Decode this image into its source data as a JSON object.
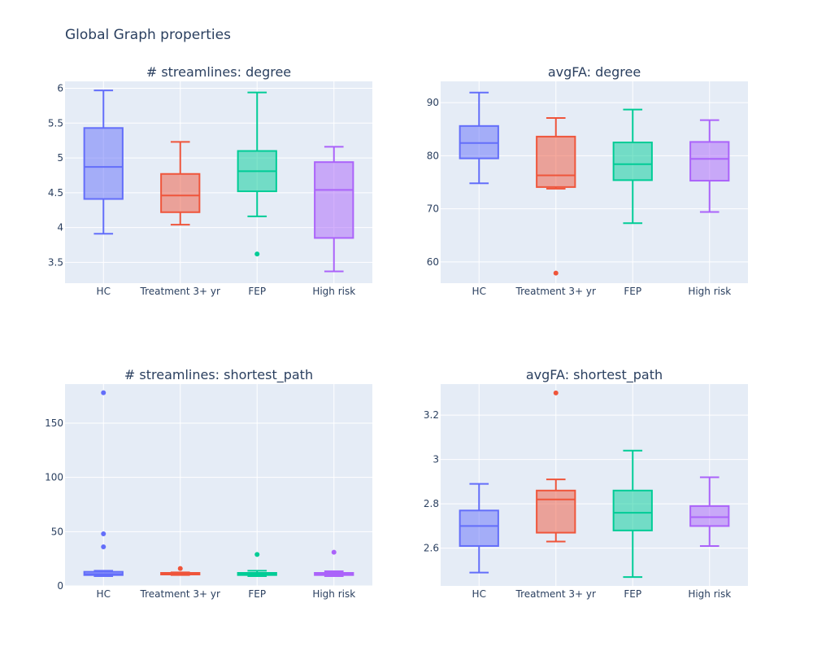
{
  "title": "Global Graph properties",
  "colors": {
    "HC": "#636efa",
    "Treatment 3+ yr": "#ef553b",
    "FEP": "#00cc96",
    "High risk": "#ab63fa",
    "plot_bg": "#e5ecf6",
    "grid": "#ffffff",
    "text": "#2a3f5f"
  },
  "chart_data": [
    {
      "type": "box",
      "title": "# streamlines: degree",
      "xlabel": "",
      "ylabel": "",
      "ylim": [
        3.2,
        6.1
      ],
      "yticks": [
        3.5,
        4,
        4.5,
        5,
        5.5,
        6
      ],
      "ytick_labels": [
        "3.5",
        "4",
        "4.5",
        "5",
        "5.5",
        "6"
      ],
      "categories": [
        "HC",
        "Treatment 3+ yr",
        "FEP",
        "High risk"
      ],
      "series": [
        {
          "min": 3.91,
          "q1": 4.41,
          "median": 4.87,
          "q3": 5.43,
          "max": 5.97,
          "outliers": []
        },
        {
          "min": 4.04,
          "q1": 4.22,
          "median": 4.46,
          "q3": 4.77,
          "max": 5.23,
          "outliers": []
        },
        {
          "min": 4.16,
          "q1": 4.52,
          "median": 4.81,
          "q3": 5.1,
          "max": 5.94,
          "outliers": [
            3.62
          ]
        },
        {
          "min": 3.37,
          "q1": 3.85,
          "median": 4.54,
          "q3": 4.94,
          "max": 5.16,
          "outliers": []
        }
      ]
    },
    {
      "type": "box",
      "title": "avgFA: degree",
      "xlabel": "",
      "ylabel": "",
      "ylim": [
        56,
        94
      ],
      "yticks": [
        60,
        70,
        80,
        90
      ],
      "ytick_labels": [
        "60",
        "70",
        "80",
        "90"
      ],
      "categories": [
        "HC",
        "Treatment 3+ yr",
        "FEP",
        "High risk"
      ],
      "series": [
        {
          "min": 74.8,
          "q1": 79.5,
          "median": 82.4,
          "q3": 85.6,
          "max": 91.9,
          "outliers": []
        },
        {
          "min": 73.8,
          "q1": 74.1,
          "median": 76.3,
          "q3": 83.6,
          "max": 87.1,
          "outliers": [
            57.9
          ]
        },
        {
          "min": 67.3,
          "q1": 75.4,
          "median": 78.4,
          "q3": 82.5,
          "max": 88.7,
          "outliers": []
        },
        {
          "min": 69.4,
          "q1": 75.3,
          "median": 79.4,
          "q3": 82.6,
          "max": 86.7,
          "outliers": []
        }
      ]
    },
    {
      "type": "box",
      "title": "# streamlines: shortest_path",
      "xlabel": "",
      "ylabel": "",
      "ylim": [
        0,
        186
      ],
      "yticks": [
        0,
        50,
        100,
        150
      ],
      "ytick_labels": [
        "0",
        "50",
        "100",
        "150"
      ],
      "categories": [
        "HC",
        "Treatment 3+ yr",
        "FEP",
        "High risk"
      ],
      "series": [
        {
          "min": 9,
          "q1": 10,
          "median": 11,
          "q3": 13,
          "max": 14,
          "outliers": [
            178,
            48,
            36
          ]
        },
        {
          "min": 10,
          "q1": 10.5,
          "median": 11,
          "q3": 12,
          "max": 12.5,
          "outliers": [
            16
          ]
        },
        {
          "min": 9,
          "q1": 10,
          "median": 11,
          "q3": 12,
          "max": 14,
          "outliers": [
            29
          ]
        },
        {
          "min": 9,
          "q1": 10,
          "median": 11,
          "q3": 12,
          "max": 13.5,
          "outliers": [
            31
          ]
        }
      ]
    },
    {
      "type": "box",
      "title": "avgFA: shortest_path",
      "xlabel": "",
      "ylabel": "",
      "ylim": [
        2.43,
        3.34
      ],
      "yticks": [
        2.6,
        2.8,
        3,
        3.2
      ],
      "ytick_labels": [
        "2.6",
        "2.8",
        "3",
        "3.2"
      ],
      "categories": [
        "HC",
        "Treatment 3+ yr",
        "FEP",
        "High risk"
      ],
      "series": [
        {
          "min": 2.49,
          "q1": 2.61,
          "median": 2.7,
          "q3": 2.77,
          "max": 2.89,
          "outliers": []
        },
        {
          "min": 2.63,
          "q1": 2.67,
          "median": 2.82,
          "q3": 2.86,
          "max": 2.91,
          "outliers": [
            3.3
          ]
        },
        {
          "min": 2.47,
          "q1": 2.68,
          "median": 2.76,
          "q3": 2.86,
          "max": 3.04,
          "outliers": []
        },
        {
          "min": 2.61,
          "q1": 2.7,
          "median": 2.74,
          "q3": 2.79,
          "max": 2.92,
          "outliers": []
        }
      ]
    }
  ]
}
